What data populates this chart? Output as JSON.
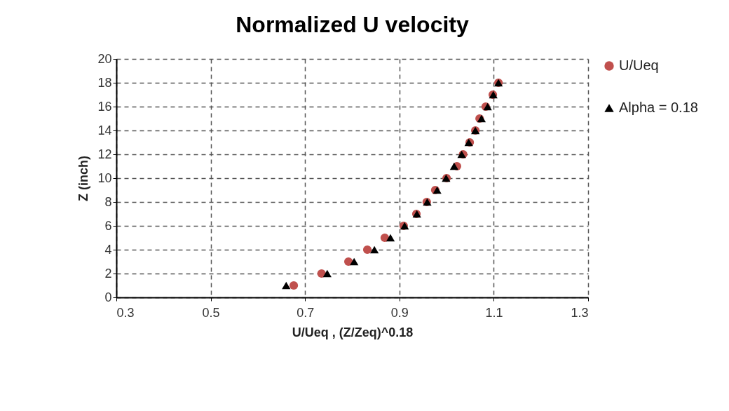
{
  "chart_data": {
    "type": "scatter",
    "title": "Normalized U velocity",
    "xlabel": "U/Ueq , (Z/Zeq)^0.18",
    "ylabel": "Z (inch)",
    "xlim": [
      0.3,
      1.3
    ],
    "xticks": [
      0.3,
      0.5,
      0.7,
      0.9,
      1.1,
      1.3
    ],
    "ylim": [
      0,
      20
    ],
    "yticks": [
      0,
      2,
      4,
      6,
      8,
      10,
      12,
      14,
      16,
      18,
      20
    ],
    "grid": true,
    "legend": "right",
    "series": [
      {
        "name": "U/Ueq",
        "color": "#c0504d",
        "marker": "circle",
        "x": [
          0.676,
          0.735,
          0.792,
          0.832,
          0.869,
          0.909,
          0.936,
          0.958,
          0.976,
          1.0,
          1.022,
          1.035,
          1.049,
          1.061,
          1.07,
          1.083,
          1.098,
          1.11
        ],
        "values": [
          1,
          2,
          3,
          4,
          5,
          6,
          7,
          8,
          9,
          10,
          11,
          12,
          13,
          14,
          15,
          16,
          17,
          18
        ]
      },
      {
        "name": "Alpha = 0.18",
        "color": "#000000",
        "marker": "triangle",
        "x": [
          0.66,
          0.747,
          0.804,
          0.847,
          0.881,
          0.911,
          0.937,
          0.959,
          0.98,
          0.999,
          1.016,
          1.032,
          1.047,
          1.061,
          1.074,
          1.087,
          1.099,
          1.11
        ],
        "values": [
          1,
          2,
          3,
          4,
          5,
          6,
          7,
          8,
          9,
          10,
          11,
          12,
          13,
          14,
          15,
          16,
          17,
          18
        ]
      }
    ]
  }
}
